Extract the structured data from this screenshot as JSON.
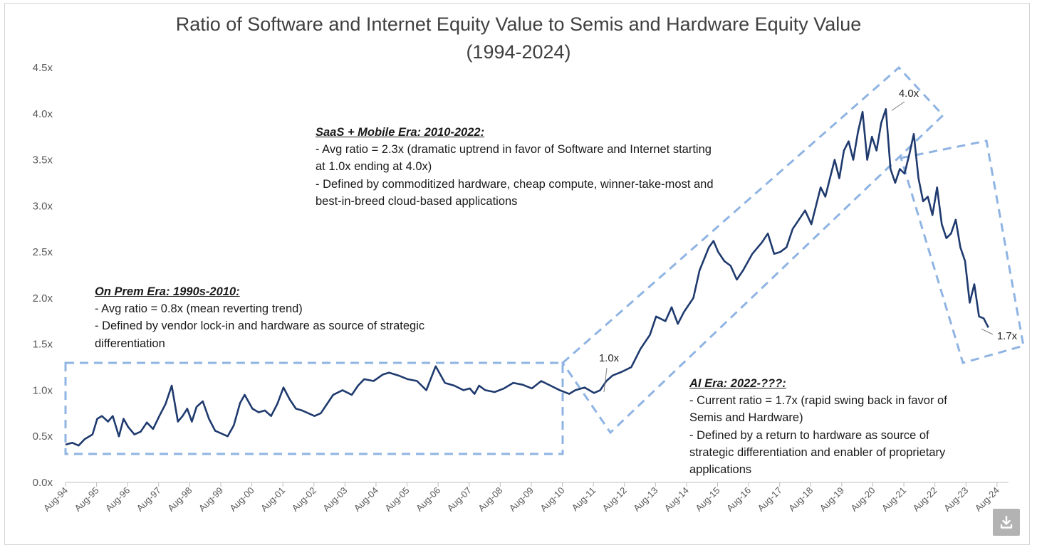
{
  "chart_data": {
    "type": "line",
    "title": "Ratio of Software and Internet Equity Value to Semis and Hardware Equity Value",
    "subtitle": "(1994-2024)",
    "xlabel": "",
    "ylabel": "",
    "ylim": [
      0,
      4.5
    ],
    "y_ticks": [
      "0.0x",
      "0.5x",
      "1.0x",
      "1.5x",
      "2.0x",
      "2.5x",
      "3.0x",
      "3.5x",
      "4.0x",
      "4.5x"
    ],
    "x_ticks": [
      "Aug-94",
      "Aug-95",
      "Aug-96",
      "Aug-97",
      "Aug-98",
      "Aug-99",
      "Aug-00",
      "Aug-01",
      "Aug-02",
      "Aug-03",
      "Aug-04",
      "Aug-05",
      "Aug-06",
      "Aug-07",
      "Aug-08",
      "Aug-09",
      "Aug-10",
      "Aug-11",
      "Aug-12",
      "Aug-13",
      "Aug-14",
      "Aug-15",
      "Aug-16",
      "Aug-17",
      "Aug-18",
      "Aug-19",
      "Aug-20",
      "Aug-21",
      "Aug-22",
      "Aug-23",
      "Aug-24"
    ],
    "grid": false,
    "line_color": "#1f3a6e",
    "box_color": "#8fb4e3",
    "series": [
      {
        "x": [
          1994.58,
          1994.8,
          1995.0,
          1995.2,
          1995.45,
          1995.6,
          1995.75,
          1995.95,
          1996.1,
          1996.3,
          1996.45,
          1996.6,
          1996.8,
          1997.0,
          1997.2,
          1997.4,
          1997.6,
          1997.8,
          1998.0,
          1998.2,
          1998.35,
          1998.5,
          1998.65,
          1998.8,
          1999.0,
          1999.2,
          1999.4,
          1999.6,
          1999.8,
          2000.0,
          2000.2,
          2000.35,
          2000.6,
          2000.8,
          2001.0,
          2001.2,
          2001.4,
          2001.6,
          2001.8,
          2002.0,
          2002.2,
          2002.4,
          2002.6,
          2002.8,
          2003.0,
          2003.2,
          2003.5,
          2003.8,
          2004.0,
          2004.2,
          2004.5,
          2004.8,
          2005.0,
          2005.3,
          2005.6,
          2005.9,
          2006.2,
          2006.5,
          2006.8,
          2007.1,
          2007.4,
          2007.6,
          2007.75,
          2007.9,
          2008.1,
          2008.4,
          2008.7,
          2009.0,
          2009.3,
          2009.6,
          2009.9,
          2010.2,
          2010.5,
          2010.8,
          2011.0,
          2011.3,
          2011.6,
          2011.8,
          2012.0,
          2012.2,
          2012.5,
          2012.8,
          2013.1,
          2013.4,
          2013.6,
          2013.9,
          2014.1,
          2014.3,
          2014.5,
          2014.8,
          2015.0,
          2015.3,
          2015.45,
          2015.6,
          2015.8,
          2016.0,
          2016.2,
          2016.4,
          2016.7,
          2017.0,
          2017.2,
          2017.4,
          2017.6,
          2017.8,
          2018.0,
          2018.2,
          2018.4,
          2018.6,
          2018.75,
          2018.9,
          2019.05,
          2019.2,
          2019.35,
          2019.5,
          2019.65,
          2019.8,
          2019.95,
          2020.1,
          2020.25,
          2020.4,
          2020.55,
          2020.7,
          2020.85,
          2021.0,
          2021.15,
          2021.3,
          2021.45,
          2021.6,
          2021.75,
          2021.9,
          2022.05,
          2022.2,
          2022.35,
          2022.5,
          2022.65,
          2022.8,
          2022.95,
          2023.1,
          2023.25,
          2023.4,
          2023.55,
          2023.7,
          2023.85,
          2024.0,
          2024.15,
          2024.3
        ],
        "y": [
          0.41,
          0.43,
          0.4,
          0.47,
          0.52,
          0.69,
          0.72,
          0.66,
          0.72,
          0.5,
          0.69,
          0.6,
          0.52,
          0.55,
          0.65,
          0.58,
          0.72,
          0.85,
          1.05,
          0.66,
          0.72,
          0.8,
          0.66,
          0.82,
          0.88,
          0.69,
          0.56,
          0.53,
          0.5,
          0.62,
          0.86,
          0.95,
          0.8,
          0.76,
          0.78,
          0.72,
          0.85,
          1.03,
          0.9,
          0.8,
          0.78,
          0.75,
          0.72,
          0.75,
          0.85,
          0.95,
          1.0,
          0.95,
          1.05,
          1.12,
          1.1,
          1.17,
          1.19,
          1.16,
          1.12,
          1.1,
          1.0,
          1.26,
          1.08,
          1.05,
          1.0,
          1.02,
          0.96,
          1.05,
          1.0,
          0.98,
          1.02,
          1.08,
          1.06,
          1.02,
          1.1,
          1.05,
          1.0,
          0.96,
          1.0,
          1.03,
          0.97,
          1.0,
          1.1,
          1.16,
          1.2,
          1.25,
          1.45,
          1.6,
          1.8,
          1.75,
          1.9,
          1.72,
          1.85,
          2.0,
          2.3,
          2.55,
          2.62,
          2.5,
          2.4,
          2.35,
          2.2,
          2.3,
          2.48,
          2.6,
          2.7,
          2.48,
          2.5,
          2.55,
          2.75,
          2.85,
          2.95,
          2.8,
          3.0,
          3.2,
          3.1,
          3.3,
          3.5,
          3.3,
          3.6,
          3.7,
          3.5,
          3.8,
          4.02,
          3.5,
          3.75,
          3.6,
          3.9,
          4.05,
          3.4,
          3.25,
          3.4,
          3.35,
          3.55,
          3.78,
          3.3,
          3.05,
          3.1,
          2.9,
          3.2,
          2.8,
          2.65,
          2.7,
          2.85,
          2.55,
          2.4,
          1.95,
          2.15,
          1.8,
          1.78,
          1.68
        ]
      }
    ],
    "data_labels": [
      "4.0x",
      "1.0x",
      "1.7x"
    ]
  },
  "annotations": {
    "on_prem": {
      "heading": "On Prem Era: 1990s-2010:",
      "lines": [
        "- Avg ratio = 0.8x (mean reverting trend)",
        "- Defined by vendor lock-in and hardware as source of strategic",
        "differentiation"
      ]
    },
    "saas": {
      "heading": "SaaS + Mobile Era: 2010-2022:",
      "lines": [
        "- Avg ratio = 2.3x (dramatic uptrend in favor of Software and Internet starting",
        "at 1.0x ending at 4.0x)",
        "- Defined by commoditized hardware, cheap compute, winner-take-most and",
        "best-in-breed cloud-based applications"
      ]
    },
    "ai": {
      "heading": "AI Era: 2022-???:",
      "lines": [
        "- Current ratio = 1.7x (rapid swing back in favor of",
        "Semis and Hardware)",
        "- Defined by a return to hardware as source of",
        "strategic differentiation and enabler of proprietary",
        "applications"
      ]
    }
  },
  "download_icon": "download-icon"
}
